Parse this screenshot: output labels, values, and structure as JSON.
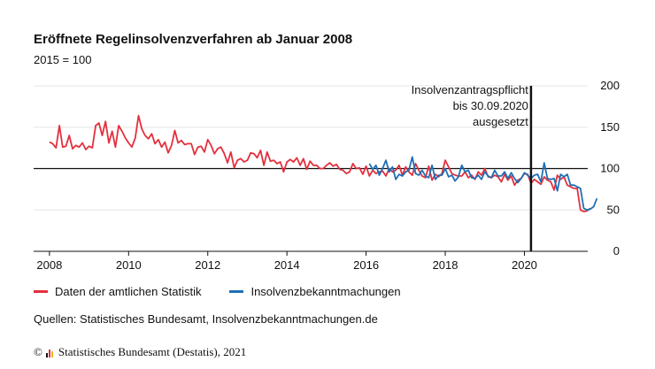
{
  "title": "Eröffnete Regelinsolvenzverfahren ab Januar 2008",
  "subtitle": "2015 = 100",
  "source": "Quellen: Statistisches Bundesamt, Insolvenzbekanntmachungen.de",
  "footer": {
    "copyright": "©",
    "text": "Statistisches Bundesamt (Destatis), 2021"
  },
  "colors": {
    "red": "#e3303d",
    "blue": "#1f6fb5",
    "axis": "#111111",
    "grid": "#e6e6e6"
  },
  "chart_data": {
    "type": "line",
    "title": "Eröffnete Regelinsolvenzverfahren ab Januar 2008",
    "subtitle": "2015 = 100",
    "xlim": [
      2007.6,
      2021.6
    ],
    "ylim": [
      0,
      200
    ],
    "x_ticks": [
      "2008",
      "2010",
      "2012",
      "2014",
      "2016",
      "2018",
      "2020"
    ],
    "y_ticks": [
      "0",
      "50",
      "100",
      "150",
      "200"
    ],
    "y_axis_position": "right",
    "grid": "horizontal",
    "reference_line": {
      "y": 100
    },
    "annotation": {
      "x": "2020-03",
      "lines": [
        "Insolvenzantragspflicht",
        "bis 30.09.2020",
        "ausgesetzt"
      ]
    },
    "legend_position": "bottom",
    "series": [
      {
        "name": "Daten der amtlichen Statistik",
        "color": "#e3303d",
        "start": "2008-01",
        "values": [
          132,
          130,
          125,
          152,
          126,
          127,
          140,
          124,
          128,
          126,
          131,
          123,
          127,
          125,
          152,
          155,
          140,
          157,
          131,
          145,
          126,
          152,
          145,
          137,
          131,
          126,
          137,
          164,
          148,
          140,
          136,
          142,
          130,
          135,
          126,
          132,
          119,
          128,
          146,
          131,
          134,
          129,
          130,
          130,
          117,
          126,
          127,
          120,
          135,
          128,
          118,
          124,
          126,
          118,
          107,
          120,
          101,
          110,
          112,
          108,
          110,
          119,
          118,
          113,
          122,
          104,
          120,
          109,
          110,
          106,
          108,
          96,
          108,
          111,
          108,
          113,
          104,
          112,
          99,
          109,
          104,
          104,
          100,
          100,
          104,
          107,
          103,
          105,
          99,
          98,
          94,
          96,
          106,
          100,
          101,
          93,
          103,
          91,
          98,
          94,
          96,
          97,
          91,
          100,
          96,
          98,
          104,
          92,
          102,
          96,
          92,
          106,
          98,
          91,
          89,
          103,
          86,
          93,
          90,
          94,
          110,
          102,
          94,
          92,
          91,
          91,
          96,
          89,
          92,
          87,
          96,
          92,
          100,
          90,
          89,
          92,
          90,
          84,
          93,
          86,
          91,
          80,
          86,
          88,
          94,
          93,
          82,
          87,
          84,
          81,
          90,
          86,
          84,
          74,
          92,
          87,
          90,
          80,
          78,
          76,
          76,
          50,
          48,
          49,
          52
        ]
      },
      {
        "name": "Insolvenzbekanntmachungen",
        "color": "#1f6fb5",
        "start": "2016-02",
        "values": [
          106,
          99,
          104,
          92,
          100,
          110,
          96,
          102,
          87,
          93,
          91,
          96,
          98,
          114,
          94,
          92,
          98,
          91,
          89,
          104,
          87,
          92,
          92,
          100,
          90,
          92,
          85,
          90,
          104,
          96,
          98,
          89,
          88,
          92,
          87,
          96,
          91,
          89,
          98,
          91,
          91,
          96,
          88,
          95,
          88,
          83,
          88,
          95,
          92,
          88,
          92,
          93,
          84,
          107,
          88,
          87,
          88,
          73,
          93,
          90,
          93,
          80,
          80,
          78,
          76,
          52,
          50,
          51,
          54,
          64
        ]
      }
    ]
  }
}
